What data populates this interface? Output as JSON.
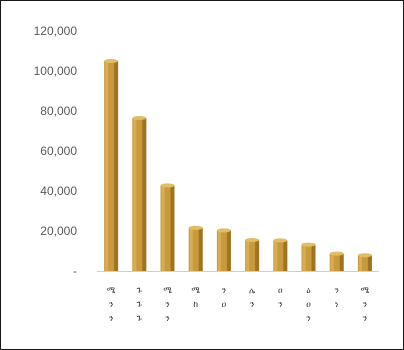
{
  "chart_data": {
    "type": "bar",
    "title": "",
    "xlabel": "",
    "ylabel": "",
    "ylim": [
      0,
      120000
    ],
    "yticks": [
      0,
      20000,
      40000,
      60000,
      80000,
      100000,
      120000
    ],
    "ytick_labels": [
      "-",
      "20,000",
      "40,000",
      "60,000",
      "80,000",
      "100,000",
      "120,000"
    ],
    "grid": false,
    "legend": "none",
    "categories": [
      [
        "ሜ",
        "ን",
        "ን"
      ],
      [
        "ጉ",
        "ጉ",
        "ጉ"
      ],
      [
        "ሜ",
        "ን",
        "ን"
      ],
      [
        "ሜ",
        "ከ",
        ""
      ],
      [
        "ን",
        "ዐ",
        ""
      ],
      [
        "ሌ",
        "ን",
        ""
      ],
      [
        "ዐ",
        "ን",
        ""
      ],
      [
        "ዕ",
        "ዐ",
        "ን"
      ],
      [
        "ን",
        "ነ",
        ""
      ],
      [
        "ሜ",
        "ን",
        "ን"
      ]
    ],
    "values": [
      105000,
      76500,
      42800,
      21600,
      20300,
      15500,
      15300,
      13200,
      8700,
      7900
    ],
    "colors": {
      "bar_fill": "#c99a3b",
      "bar_shadow": "#8c6418",
      "bar_highlight": "#e2bd68",
      "axis_line": "#cfcfcf",
      "tick_text": "#5a5a5a",
      "border": "#1a1a1a"
    }
  }
}
